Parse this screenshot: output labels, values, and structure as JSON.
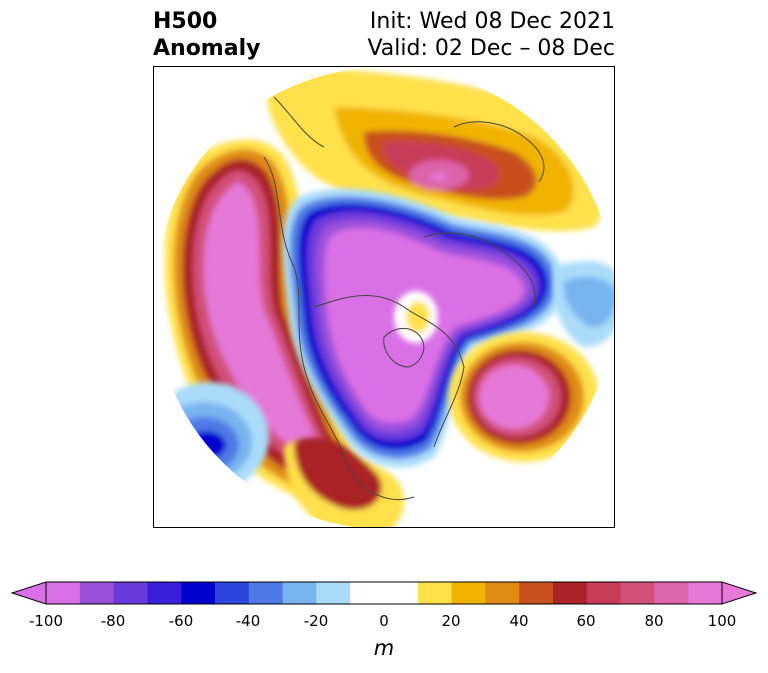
{
  "header": {
    "title_line1": "H500",
    "title_line2": "Anomaly",
    "init_text": "Init: Wed 08 Dec 2021",
    "valid_text": "Valid: 02 Dec – 08 Dec"
  },
  "colorbar": {
    "unit": "m",
    "min": -100,
    "max": 100,
    "step": 10,
    "extend": "both",
    "tick_labels": [
      "-100",
      "-80",
      "-60",
      "-40",
      "-20",
      "0",
      "20",
      "40",
      "60",
      "80",
      "100"
    ],
    "colors": [
      "#da70e6",
      "#9b50dc",
      "#6a3adc",
      "#3a1edb",
      "#0000cd",
      "#2a46dc",
      "#4f7ae6",
      "#78b4f0",
      "#aadcfa",
      "#ffffff",
      "#ffffff",
      "#ffe14b",
      "#f0b400",
      "#e08c14",
      "#c8501e",
      "#aa2328",
      "#c83c5a",
      "#d25078",
      "#dc64aa",
      "#e678d7"
    ],
    "under_color": "#da70e6",
    "over_color": "#e678d7"
  },
  "map": {
    "projection": "north polar stereographic",
    "field": "500 hPa geopotential height anomaly"
  }
}
